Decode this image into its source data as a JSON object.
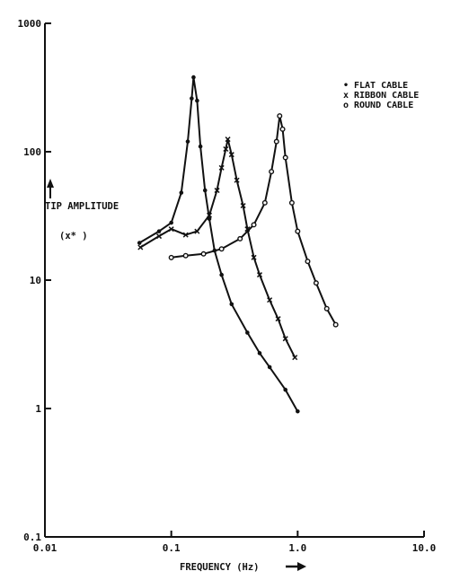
{
  "chart_data": {
    "type": "line",
    "title": "",
    "xlabel": "FREQUENCY (Hz)",
    "ylabel": "TIP AMPLITUDE",
    "ylabel_unit": "(x* )",
    "x_scale": "log",
    "y_scale": "log",
    "xlim": [
      0.01,
      10.0
    ],
    "ylim": [
      0.1,
      1000
    ],
    "x_ticks": [
      {
        "value": 0.01,
        "label": "0.01"
      },
      {
        "value": 0.1,
        "label": "0.1"
      },
      {
        "value": 1.0,
        "label": "1.0"
      },
      {
        "value": 10.0,
        "label": "10.0"
      }
    ],
    "y_ticks": [
      {
        "value": 0.1,
        "label": "0.1"
      },
      {
        "value": 1,
        "label": "1"
      },
      {
        "value": 10,
        "label": "10"
      },
      {
        "value": 100,
        "label": "100"
      },
      {
        "value": 1000,
        "label": "1000"
      }
    ],
    "grid": false,
    "legend_position": "top-right",
    "series": [
      {
        "name": "FLAT CABLE",
        "marker": "•",
        "points": [
          [
            0.056,
            19.5
          ],
          [
            0.08,
            24
          ],
          [
            0.1,
            28
          ],
          [
            0.12,
            48
          ],
          [
            0.135,
            120
          ],
          [
            0.145,
            260
          ],
          [
            0.15,
            380
          ],
          [
            0.16,
            250
          ],
          [
            0.17,
            110
          ],
          [
            0.185,
            50
          ],
          [
            0.2,
            30
          ],
          [
            0.22,
            17
          ],
          [
            0.25,
            11
          ],
          [
            0.3,
            6.5
          ],
          [
            0.4,
            3.9
          ],
          [
            0.5,
            2.7
          ],
          [
            0.6,
            2.1
          ],
          [
            0.8,
            1.4
          ],
          [
            1.0,
            0.95
          ]
        ]
      },
      {
        "name": "RIBBON CABLE",
        "marker": "x",
        "points": [
          [
            0.057,
            18
          ],
          [
            0.08,
            22
          ],
          [
            0.1,
            25
          ],
          [
            0.13,
            22.5
          ],
          [
            0.16,
            24
          ],
          [
            0.2,
            32
          ],
          [
            0.23,
            50
          ],
          [
            0.25,
            75
          ],
          [
            0.27,
            105
          ],
          [
            0.28,
            125
          ],
          [
            0.3,
            95
          ],
          [
            0.33,
            60
          ],
          [
            0.37,
            38
          ],
          [
            0.4,
            25
          ],
          [
            0.45,
            15
          ],
          [
            0.5,
            11
          ],
          [
            0.6,
            7
          ],
          [
            0.7,
            5
          ],
          [
            0.8,
            3.5
          ],
          [
            0.95,
            2.5
          ]
        ]
      },
      {
        "name": "ROUND CABLE",
        "marker": "o",
        "points": [
          [
            0.1,
            15
          ],
          [
            0.13,
            15.5
          ],
          [
            0.18,
            16
          ],
          [
            0.25,
            17.5
          ],
          [
            0.35,
            21
          ],
          [
            0.45,
            27
          ],
          [
            0.55,
            40
          ],
          [
            0.62,
            70
          ],
          [
            0.68,
            120
          ],
          [
            0.72,
            190
          ],
          [
            0.76,
            150
          ],
          [
            0.8,
            90
          ],
          [
            0.9,
            40
          ],
          [
            1.0,
            24
          ],
          [
            1.2,
            14
          ],
          [
            1.4,
            9.5
          ],
          [
            1.7,
            6
          ],
          [
            2.0,
            4.5
          ]
        ]
      }
    ]
  }
}
